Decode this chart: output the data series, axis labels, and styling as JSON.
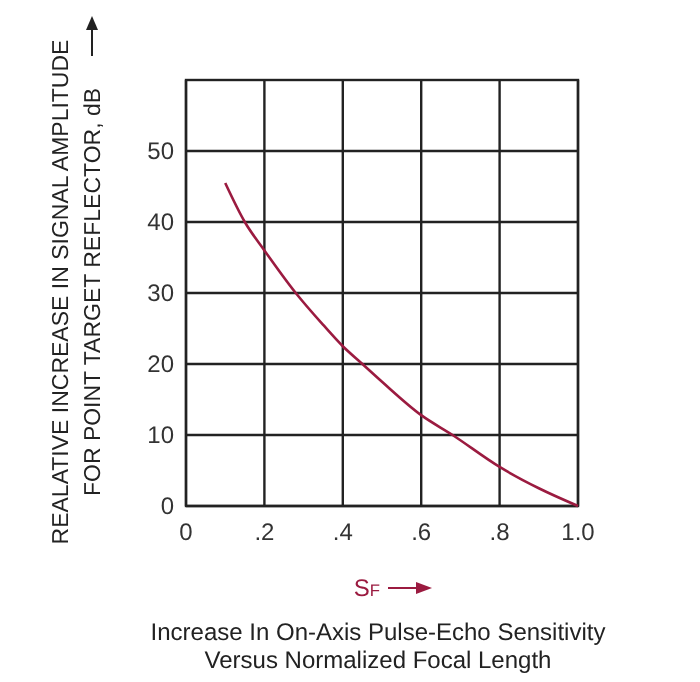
{
  "chart_data": {
    "type": "line",
    "title": "Increase In On-Axis Pulse-Echo Sensitivity\nVersus Normalized Focal Length",
    "xlabel": "S$_{F}$",
    "ylabel": "REALATIVE INCREASE IN SIGNAL AMPLITUDE\nFOR POINT TARGET REFLECTOR, dB",
    "x": [
      0.1,
      0.15,
      0.2,
      0.28,
      0.35,
      0.4,
      0.45,
      0.5,
      0.6,
      0.68,
      0.8,
      0.9,
      1.0
    ],
    "series": [
      {
        "color": "#9b1b40",
        "values": [
          45.5,
          40,
          36,
          30,
          25.5,
          22.5,
          20,
          17.5,
          12.8,
          10,
          5.5,
          2.5,
          0
        ]
      }
    ],
    "xlim": [
      0,
      1
    ],
    "ylim": [
      0,
      60
    ],
    "xticks": [
      0,
      {
        "value": 0.2,
        "label": ".2"
      },
      {
        "value": 0.4,
        "label": ".4"
      },
      {
        "value": 0.6,
        "label": ".6"
      },
      {
        "value": 0.8,
        "label": ".8"
      },
      {
        "value": 1.0,
        "label": "1.0"
      }
    ],
    "yticks": [
      0,
      10,
      20,
      30,
      40,
      50
    ],
    "grid": true,
    "marker": "none",
    "line_style": "solid"
  }
}
